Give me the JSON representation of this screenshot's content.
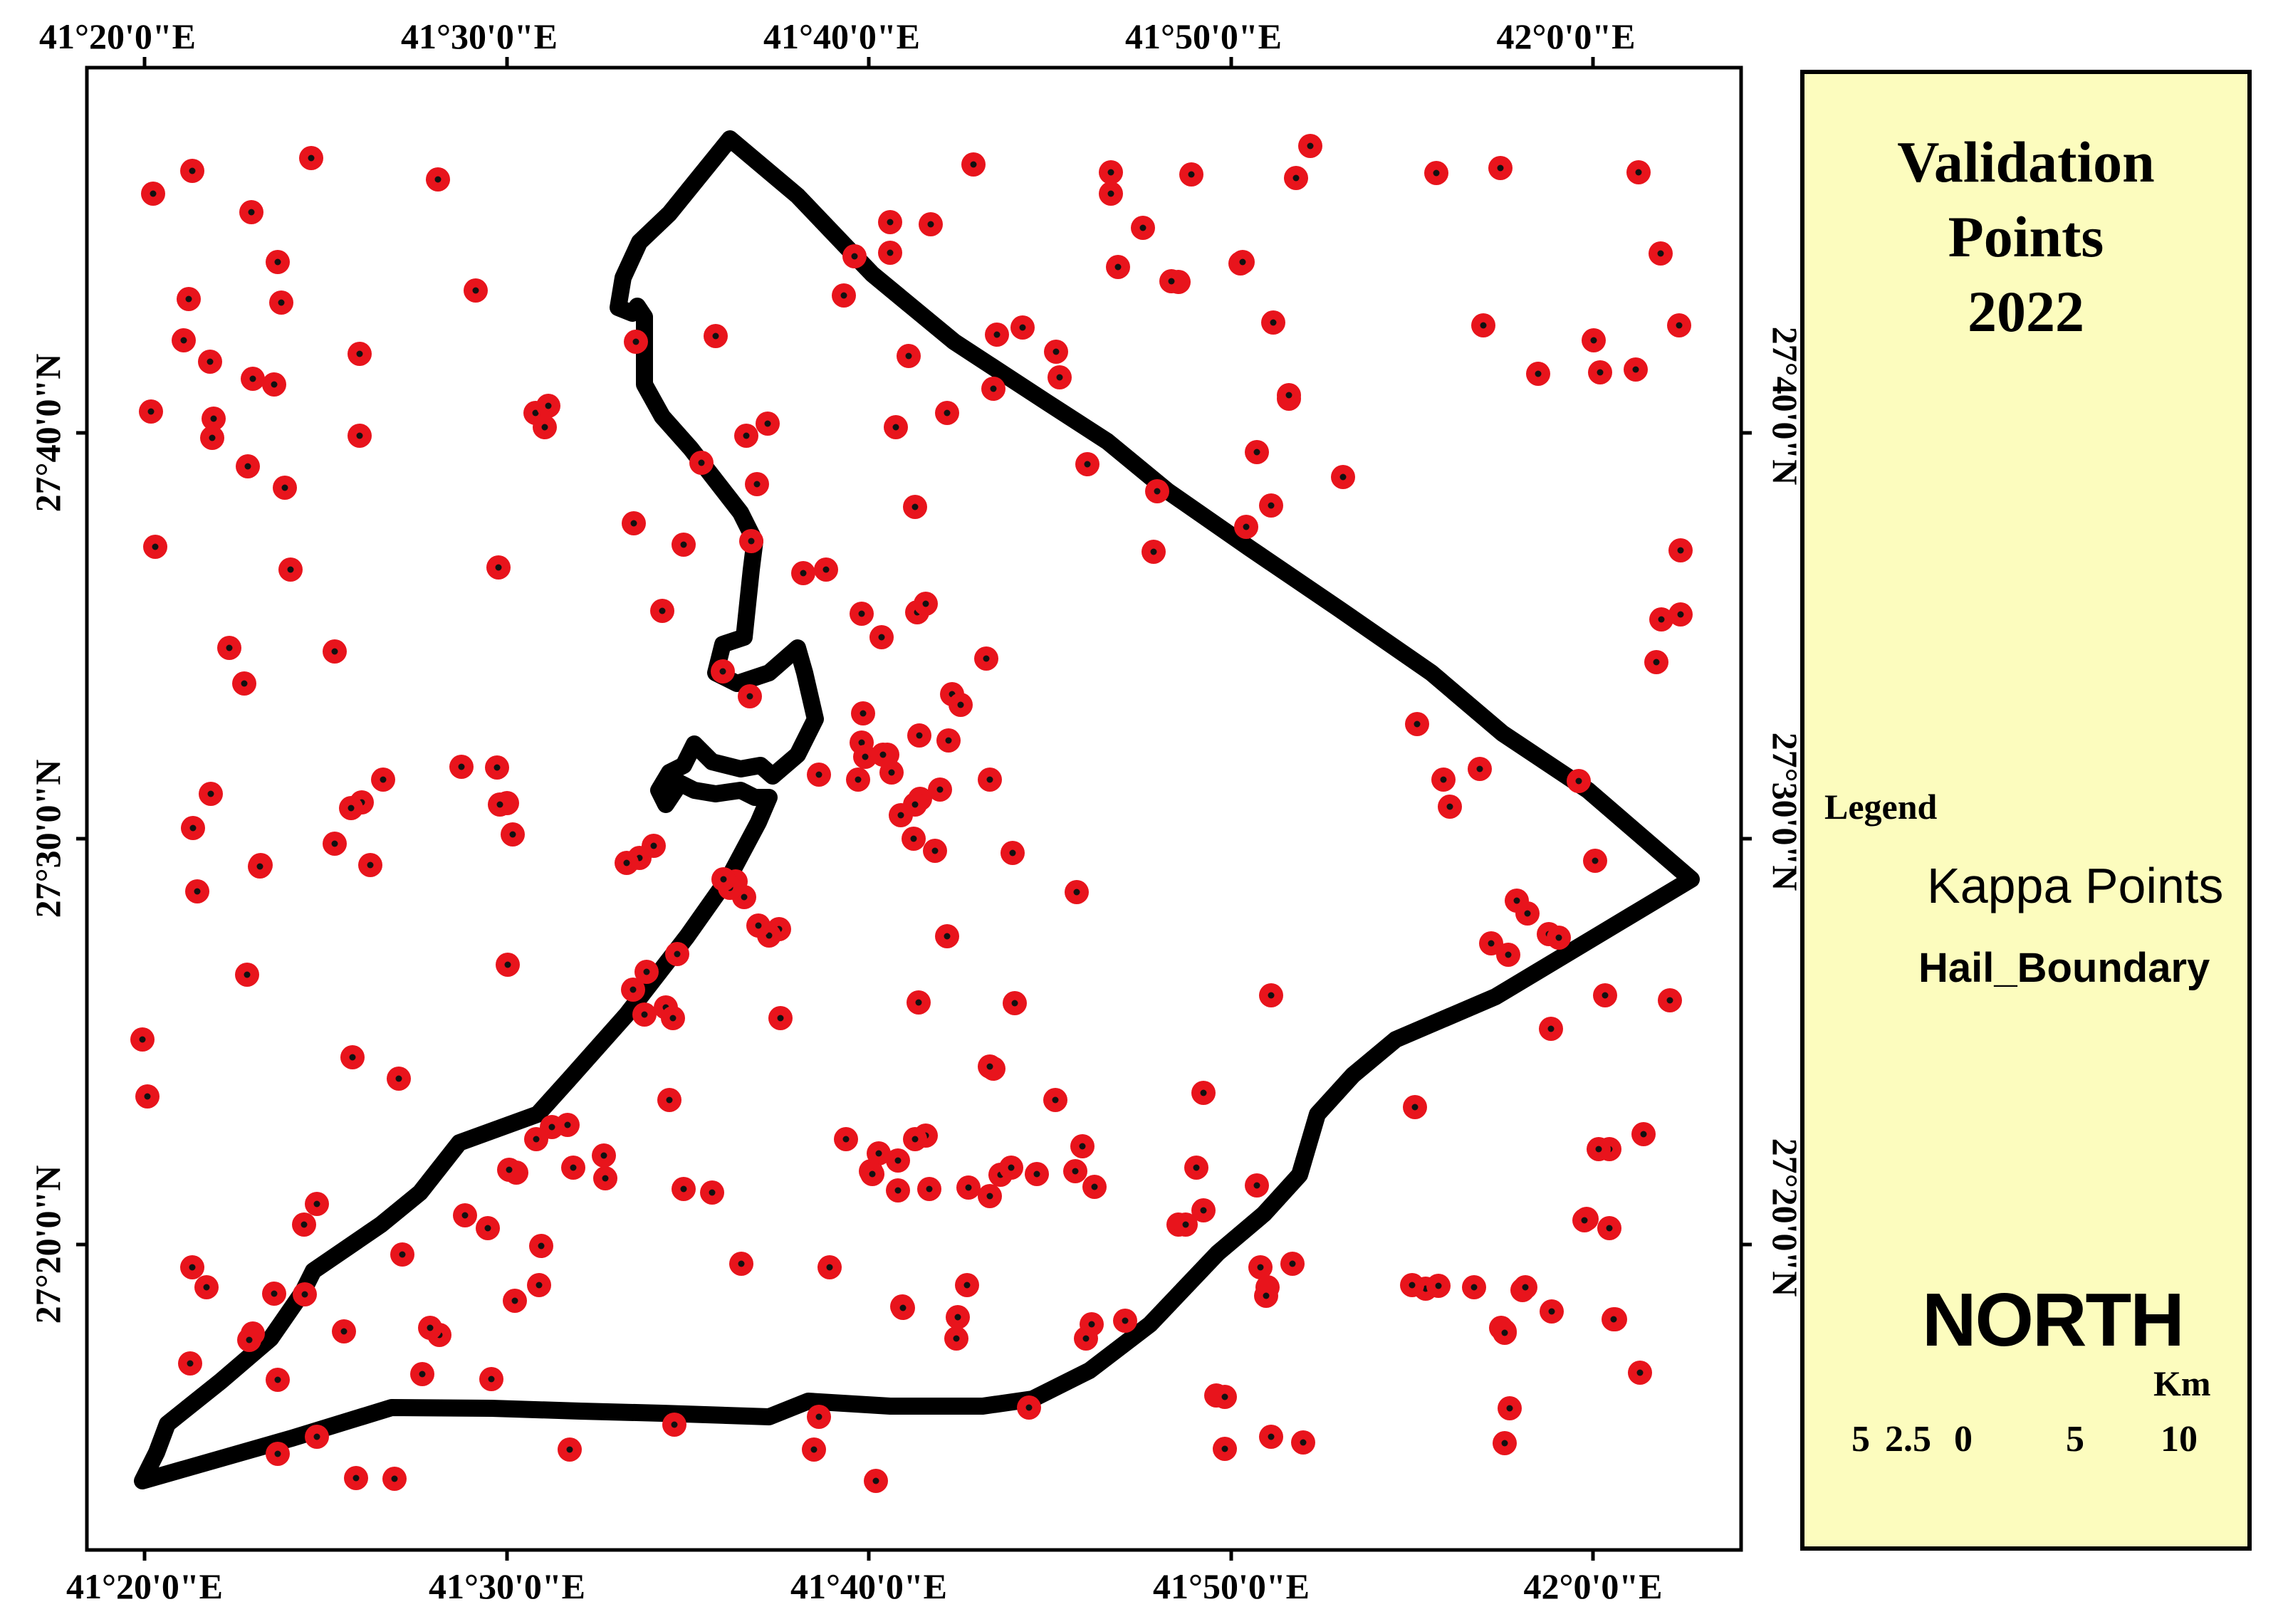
{
  "map": {
    "top_longitude_labels": [
      "41°20'0\"E",
      "41°30'0\"E",
      "41°40'0\"E",
      "41°50'0\"E",
      "42°0'0\"E"
    ],
    "bottom_longitude_labels": [
      "41°20'0\"E",
      "41°30'0\"E",
      "41°40'0\"E",
      "41°50'0\"E",
      "42°0'0\"E"
    ],
    "left_latitude_labels": [
      "27°40'0\"N",
      "27°30'0\"N",
      "27°20'0\"N"
    ],
    "right_latitude_labels": [
      "27°40'0\"N",
      "27°30'0\"N",
      "27°20'0\"N"
    ],
    "point_color": "#e8141c",
    "boundary_color": "#000000"
  },
  "legend": {
    "title_lines": [
      "Validation",
      "Points",
      "2022"
    ],
    "heading": "Legend",
    "items": [
      {
        "label": "Kappa Points",
        "symbol": "red-point"
      },
      {
        "label": "Hail_Boundary",
        "symbol": "black-outline-box"
      }
    ],
    "north_label": "NORTH",
    "scale_unit": "Km",
    "scale_ticks": [
      "5",
      "2.5",
      "0",
      "5",
      "10"
    ]
  }
}
